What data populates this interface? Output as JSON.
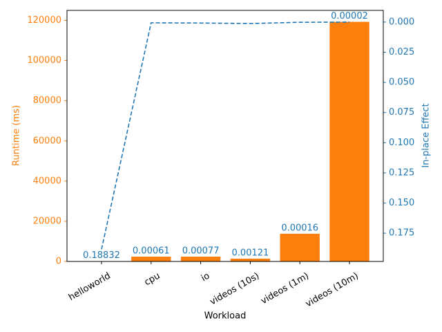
{
  "chart_data": {
    "type": "bar-line",
    "x_label": "Workload",
    "y_label": "Runtime (ms)",
    "y2_label": "In-place Effect",
    "categories": [
      "helloworld",
      "cpu",
      "io",
      "videos (10s)",
      "videos (1m)",
      "videos (10m)"
    ],
    "series": [
      {
        "type": "bar",
        "color": "#ff7f0e",
        "values": [
          100,
          2400,
          2400,
          1400,
          13800,
          119300
        ]
      },
      {
        "type": "line",
        "color": "#1f77b4",
        "axis": "y2",
        "dashed": true,
        "show_value_labels": true,
        "values": [
          0.18832,
          0.00061,
          0.00077,
          0.00121,
          0.00016,
          2e-05
        ]
      }
    ],
    "ylim": [
      0,
      125000
    ],
    "yticks": [
      0,
      20000,
      40000,
      60000,
      80000,
      100000,
      120000
    ],
    "y2lim": [
      0.1984,
      -0.0097
    ],
    "y2ticks": [
      {
        "value": 0,
        "label": "0.000"
      },
      {
        "value": 0.025,
        "label": "0.025"
      },
      {
        "value": 0.05,
        "label": "0.050"
      },
      {
        "value": 0.075,
        "label": "0.075"
      },
      {
        "value": 0.1,
        "label": "0.100"
      },
      {
        "value": 0.125,
        "label": "0.125"
      },
      {
        "value": 0.15,
        "label": "0.150"
      },
      {
        "value": 0.175,
        "label": "0.175"
      }
    ]
  }
}
